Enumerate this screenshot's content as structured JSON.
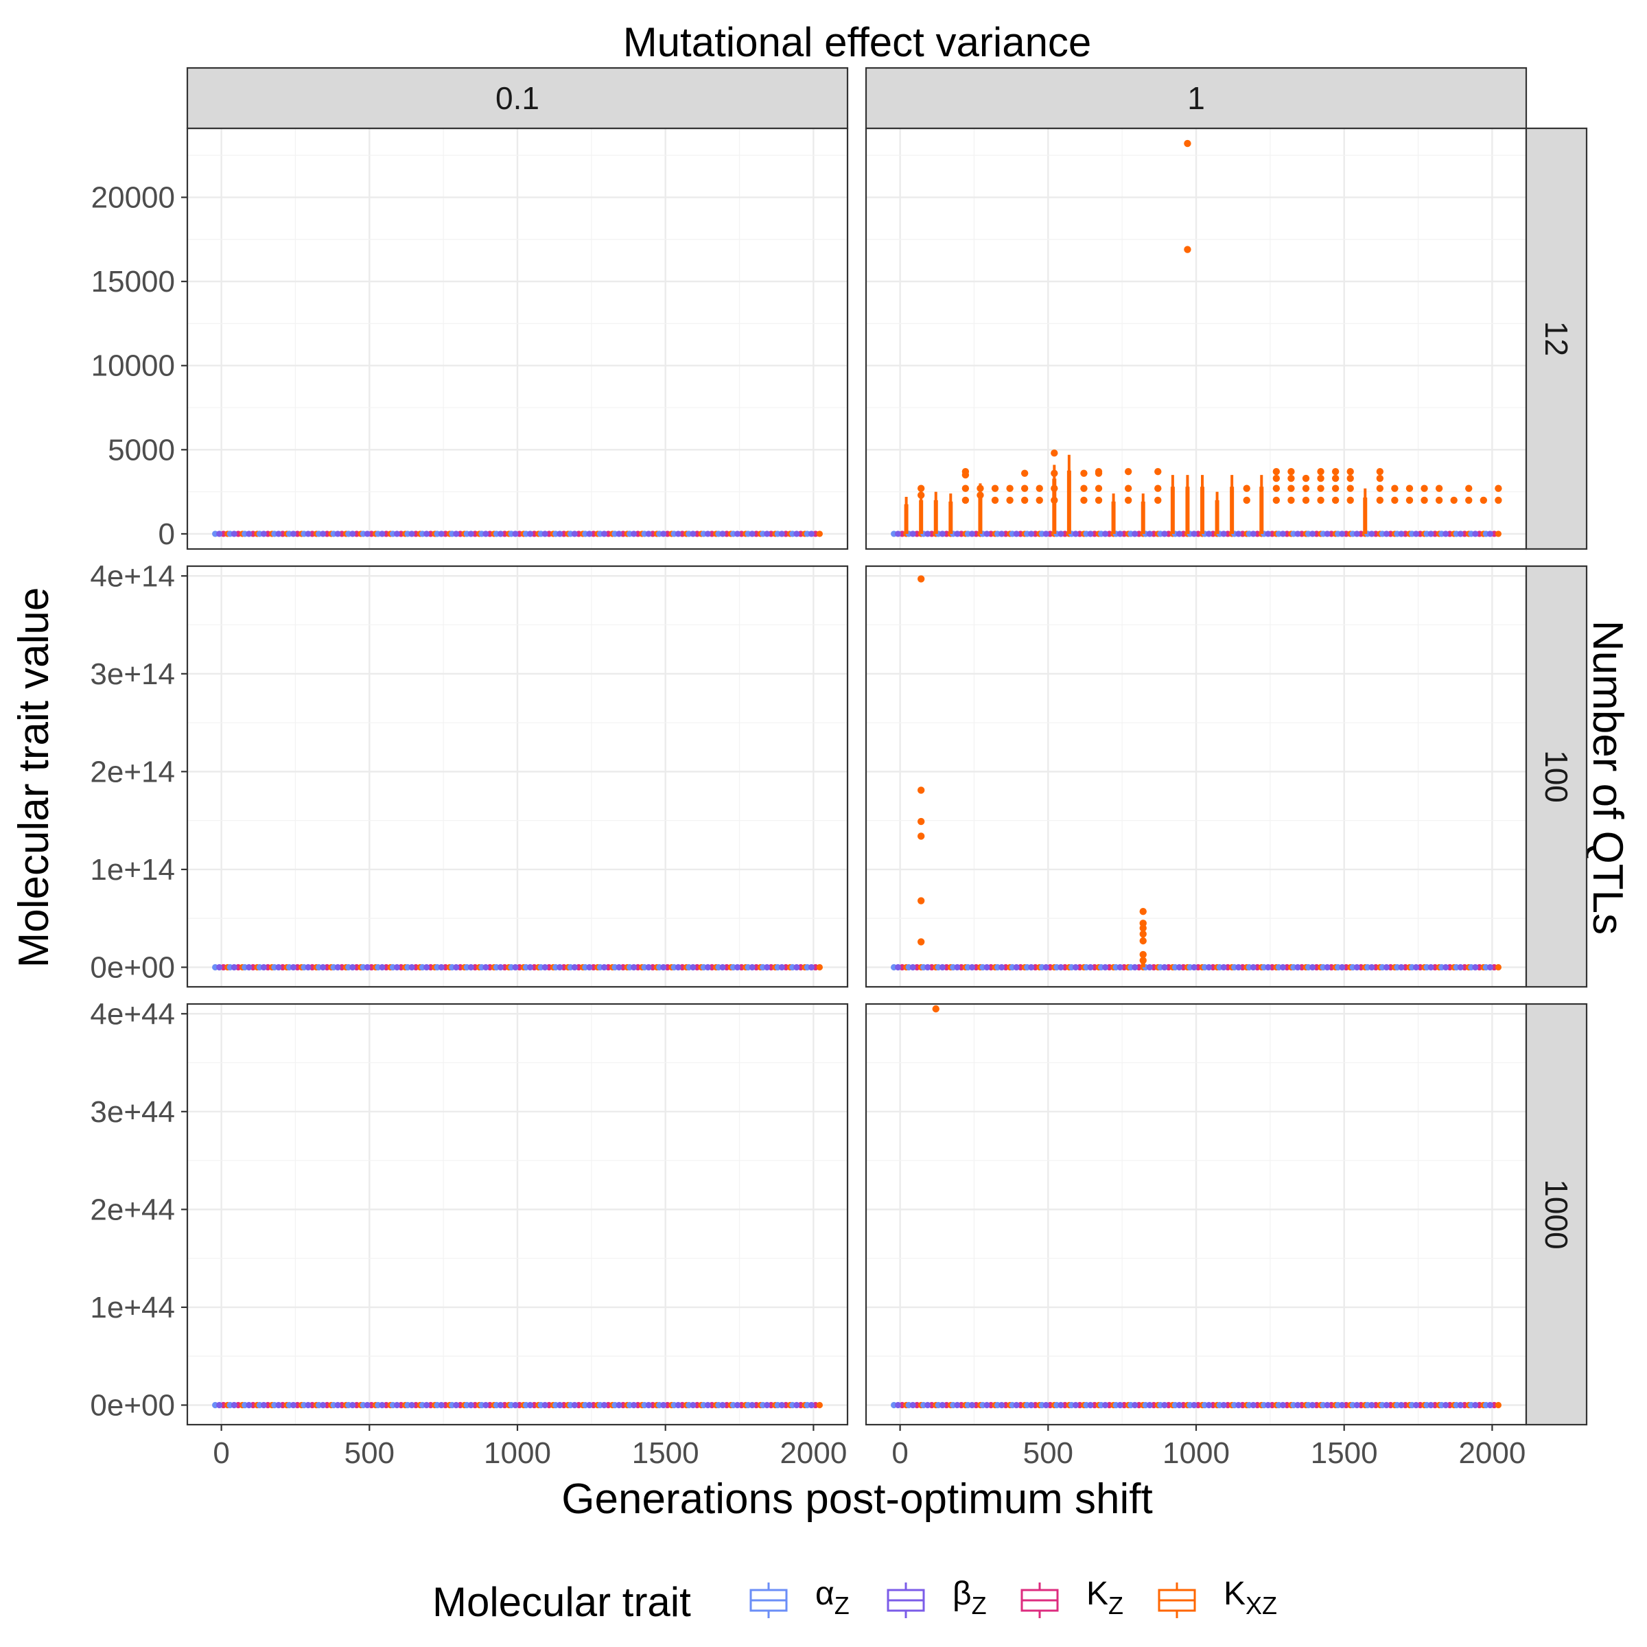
{
  "chart_data": {
    "type": "boxplot",
    "title": "Mutational effect variance",
    "xlabel": "Generations post-optimum shift",
    "ylabel": "Molecular trait value",
    "row_facet_title": "Number of QTLs",
    "col_facets": [
      "0.1",
      "1"
    ],
    "row_facets": [
      "12",
      "100",
      "1000"
    ],
    "xlim": [
      -115,
      2115
    ],
    "xticks": [
      "0",
      "500",
      "1000",
      "1500",
      "2000"
    ],
    "xtick_values": [
      0,
      500,
      1000,
      1500,
      2000
    ],
    "x_generations_start": 0,
    "x_generations_step": 50,
    "x_generations_end": 2000,
    "grid": true,
    "legend": {
      "position": "bottom",
      "title": "Molecular trait",
      "entries": [
        {
          "label": "α",
          "sub": "Z",
          "color": "#6B8EF7"
        },
        {
          "label": "β",
          "sub": "Z",
          "color": "#7B5CE8"
        },
        {
          "label": "K",
          "sub": "Z",
          "color": "#DD2C7F"
        },
        {
          "label": "K",
          "sub": "XZ",
          "color": "#FF6600"
        }
      ]
    },
    "rows": [
      {
        "label": "12",
        "ylim": [
          -900,
          24100
        ],
        "yticks": [
          "0",
          "5000",
          "10000",
          "15000",
          "20000"
        ],
        "ytick_values": [
          0,
          5000,
          10000,
          15000,
          20000
        ],
        "panels": [
          {
            "col": "0.1",
            "outliers": []
          },
          {
            "col": "1",
            "whiskers": [
              [
                0,
                2200
              ],
              [
                50,
                2500
              ],
              [
                100,
                2500
              ],
              [
                150,
                2400
              ],
              [
                250,
                3000
              ],
              [
                500,
                4100
              ],
              [
                550,
                4700
              ],
              [
                700,
                2400
              ],
              [
                800,
                2400
              ],
              [
                900,
                3500
              ],
              [
                950,
                3500
              ],
              [
                1000,
                3500
              ],
              [
                1050,
                2500
              ],
              [
                1100,
                3500
              ],
              [
                1200,
                3500
              ],
              [
                1550,
                2700
              ]
            ],
            "outliers": [
              [
                50,
                2300
              ],
              [
                50,
                2700
              ],
              [
                200,
                2000
              ],
              [
                200,
                2700
              ],
              [
                200,
                3500
              ],
              [
                200,
                3700
              ],
              [
                250,
                2300
              ],
              [
                250,
                2700
              ],
              [
                300,
                2000
              ],
              [
                300,
                2700
              ],
              [
                350,
                2000
              ],
              [
                350,
                2700
              ],
              [
                400,
                2000
              ],
              [
                400,
                2700
              ],
              [
                400,
                3600
              ],
              [
                450,
                2000
              ],
              [
                450,
                2700
              ],
              [
                500,
                2000
              ],
              [
                500,
                2700
              ],
              [
                500,
                3600
              ],
              [
                500,
                4800
              ],
              [
                600,
                2000
              ],
              [
                600,
                2700
              ],
              [
                600,
                3600
              ],
              [
                650,
                2000
              ],
              [
                650,
                2700
              ],
              [
                650,
                3600
              ],
              [
                650,
                3700
              ],
              [
                750,
                2000
              ],
              [
                750,
                2700
              ],
              [
                750,
                3700
              ],
              [
                850,
                2000
              ],
              [
                850,
                2700
              ],
              [
                850,
                3700
              ],
              [
                950,
                23200
              ],
              [
                950,
                16900
              ],
              [
                1150,
                2000
              ],
              [
                1150,
                2700
              ],
              [
                1250,
                2000
              ],
              [
                1250,
                2700
              ],
              [
                1250,
                3300
              ],
              [
                1250,
                3700
              ],
              [
                1300,
                2000
              ],
              [
                1300,
                2700
              ],
              [
                1300,
                3300
              ],
              [
                1300,
                3700
              ],
              [
                1350,
                2000
              ],
              [
                1350,
                2700
              ],
              [
                1350,
                3300
              ],
              [
                1400,
                2000
              ],
              [
                1400,
                2700
              ],
              [
                1400,
                3300
              ],
              [
                1400,
                3700
              ],
              [
                1450,
                2000
              ],
              [
                1450,
                2700
              ],
              [
                1450,
                3300
              ],
              [
                1450,
                3700
              ],
              [
                1500,
                2000
              ],
              [
                1500,
                2700
              ],
              [
                1500,
                3300
              ],
              [
                1500,
                3700
              ],
              [
                1600,
                2000
              ],
              [
                1600,
                2700
              ],
              [
                1600,
                3300
              ],
              [
                1600,
                3700
              ],
              [
                1650,
                2000
              ],
              [
                1650,
                2700
              ],
              [
                1700,
                2000
              ],
              [
                1700,
                2700
              ],
              [
                1750,
                2000
              ],
              [
                1750,
                2700
              ],
              [
                1800,
                2000
              ],
              [
                1800,
                2700
              ],
              [
                1850,
                2000
              ],
              [
                1900,
                2000
              ],
              [
                1900,
                2700
              ],
              [
                1950,
                2000
              ],
              [
                2000,
                2000
              ],
              [
                2000,
                2700
              ]
            ]
          }
        ]
      },
      {
        "label": "100",
        "ylim": [
          -20000000000000.0,
          410000000000000.0
        ],
        "yticks": [
          "0e+00",
          "1e+14",
          "2e+14",
          "3e+14",
          "4e+14"
        ],
        "ytick_values": [
          0,
          100000000000000.0,
          200000000000000.0,
          300000000000000.0,
          400000000000000.0
        ],
        "panels": [
          {
            "col": "0.1",
            "outliers": []
          },
          {
            "col": "1",
            "whiskers": [
              [
                800,
                12000000000000.0
              ]
            ],
            "outliers": [
              [
                50,
                397000000000000.0
              ],
              [
                50,
                181000000000000.0
              ],
              [
                50,
                149000000000000.0
              ],
              [
                50,
                134000000000000.0
              ],
              [
                50,
                68000000000000.0
              ],
              [
                50,
                26000000000000.0
              ],
              [
                800,
                57000000000000.0
              ],
              [
                800,
                45000000000000.0
              ],
              [
                800,
                40000000000000.0
              ],
              [
                800,
                34000000000000.0
              ],
              [
                800,
                27000000000000.0
              ],
              [
                800,
                13000000000000.0
              ],
              [
                800,
                7000000000000.0
              ]
            ]
          }
        ]
      },
      {
        "label": "1000",
        "ylim": [
          -2e+43,
          4.1e+44
        ],
        "yticks": [
          "0e+00",
          "1e+44",
          "2e+44",
          "3e+44",
          "4e+44"
        ],
        "ytick_values": [
          0,
          1e+44,
          2e+44,
          3e+44,
          4e+44
        ],
        "panels": [
          {
            "col": "0.1",
            "outliers": []
          },
          {
            "col": "1",
            "outliers": [
              [
                100,
                4.05e+44
              ]
            ]
          }
        ]
      }
    ]
  }
}
